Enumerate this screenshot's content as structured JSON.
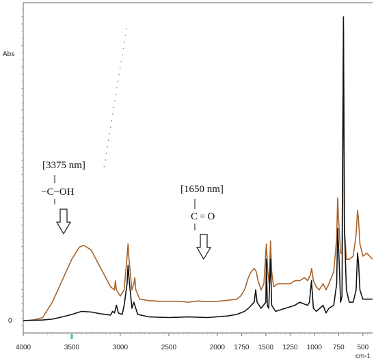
{
  "chart_data": {
    "type": "line",
    "title": "",
    "xlabel": "cm-1",
    "ylabel": "Abs",
    "x_reversed": true,
    "xlim": [
      4000,
      400
    ],
    "ylim": [
      -0.05,
      1.0
    ],
    "x_ticks": [
      4000,
      3500,
      3000,
      2500,
      2000,
      1750,
      1500,
      1250,
      1000,
      750,
      500
    ],
    "y_tick_labels": [
      {
        "value": 0,
        "label": "0"
      }
    ],
    "grid": false,
    "series": [
      {
        "color": "#a8632a",
        "points": [
          [
            4000,
            0.0
          ],
          [
            3900,
            0.002
          ],
          [
            3800,
            0.01
          ],
          [
            3700,
            0.06
          ],
          [
            3600,
            0.13
          ],
          [
            3500,
            0.2
          ],
          [
            3420,
            0.24
          ],
          [
            3375,
            0.245
          ],
          [
            3300,
            0.23
          ],
          [
            3200,
            0.17
          ],
          [
            3100,
            0.11
          ],
          [
            3060,
            0.1
          ],
          [
            3050,
            0.13
          ],
          [
            3040,
            0.1
          ],
          [
            3000,
            0.08
          ],
          [
            2960,
            0.1
          ],
          [
            2930,
            0.21
          ],
          [
            2920,
            0.25
          ],
          [
            2910,
            0.2
          ],
          [
            2880,
            0.1
          ],
          [
            2860,
            0.12
          ],
          [
            2850,
            0.14
          ],
          [
            2840,
            0.1
          ],
          [
            2800,
            0.07
          ],
          [
            2700,
            0.065
          ],
          [
            2600,
            0.063
          ],
          [
            2500,
            0.063
          ],
          [
            2400,
            0.063
          ],
          [
            2300,
            0.06
          ],
          [
            2200,
            0.064
          ],
          [
            2100,
            0.062
          ],
          [
            2000,
            0.063
          ],
          [
            1900,
            0.066
          ],
          [
            1800,
            0.07
          ],
          [
            1760,
            0.08
          ],
          [
            1720,
            0.1
          ],
          [
            1680,
            0.14
          ],
          [
            1650,
            0.16
          ],
          [
            1620,
            0.17
          ],
          [
            1600,
            0.16
          ],
          [
            1580,
            0.13
          ],
          [
            1550,
            0.1
          ],
          [
            1520,
            0.12
          ],
          [
            1495,
            0.25
          ],
          [
            1480,
            0.16
          ],
          [
            1465,
            0.12
          ],
          [
            1452,
            0.26
          ],
          [
            1440,
            0.16
          ],
          [
            1420,
            0.11
          ],
          [
            1380,
            0.12
          ],
          [
            1300,
            0.12
          ],
          [
            1250,
            0.12
          ],
          [
            1200,
            0.13
          ],
          [
            1150,
            0.13
          ],
          [
            1100,
            0.14
          ],
          [
            1070,
            0.13
          ],
          [
            1040,
            0.15
          ],
          [
            1028,
            0.17
          ],
          [
            1010,
            0.13
          ],
          [
            980,
            0.11
          ],
          [
            950,
            0.1
          ],
          [
            910,
            0.12
          ],
          [
            880,
            0.1
          ],
          [
            850,
            0.12
          ],
          [
            800,
            0.16
          ],
          [
            770,
            0.27
          ],
          [
            760,
            0.4
          ],
          [
            750,
            0.33
          ],
          [
            730,
            0.22
          ],
          [
            715,
            0.22
          ],
          [
            700,
            0.95
          ],
          [
            690,
            0.3
          ],
          [
            670,
            0.2
          ],
          [
            640,
            0.2
          ],
          [
            600,
            0.21
          ],
          [
            570,
            0.28
          ],
          [
            555,
            0.36
          ],
          [
            545,
            0.33
          ],
          [
            530,
            0.25
          ],
          [
            500,
            0.21
          ],
          [
            460,
            0.22
          ],
          [
            430,
            0.21
          ],
          [
            400,
            0.2
          ]
        ]
      },
      {
        "color": "#111111",
        "points": [
          [
            4000,
            0.0
          ],
          [
            3800,
            0.002
          ],
          [
            3700,
            0.005
          ],
          [
            3600,
            0.012
          ],
          [
            3500,
            0.02
          ],
          [
            3400,
            0.03
          ],
          [
            3300,
            0.028
          ],
          [
            3200,
            0.022
          ],
          [
            3100,
            0.018
          ],
          [
            3080,
            0.03
          ],
          [
            3060,
            0.025
          ],
          [
            3040,
            0.05
          ],
          [
            3020,
            0.025
          ],
          [
            2980,
            0.02
          ],
          [
            2960,
            0.05
          ],
          [
            2930,
            0.12
          ],
          [
            2920,
            0.18
          ],
          [
            2905,
            0.12
          ],
          [
            2880,
            0.04
          ],
          [
            2860,
            0.06
          ],
          [
            2850,
            0.05
          ],
          [
            2820,
            0.02
          ],
          [
            2700,
            0.012
          ],
          [
            2500,
            0.01
          ],
          [
            2300,
            0.012
          ],
          [
            2100,
            0.01
          ],
          [
            1900,
            0.015
          ],
          [
            1800,
            0.02
          ],
          [
            1720,
            0.03
          ],
          [
            1680,
            0.04
          ],
          [
            1650,
            0.05
          ],
          [
            1620,
            0.06
          ],
          [
            1605,
            0.1
          ],
          [
            1590,
            0.06
          ],
          [
            1550,
            0.04
          ],
          [
            1500,
            0.06
          ],
          [
            1495,
            0.2
          ],
          [
            1485,
            0.05
          ],
          [
            1470,
            0.04
          ],
          [
            1452,
            0.2
          ],
          [
            1440,
            0.05
          ],
          [
            1400,
            0.03
          ],
          [
            1300,
            0.04
          ],
          [
            1200,
            0.05
          ],
          [
            1150,
            0.06
          ],
          [
            1070,
            0.05
          ],
          [
            1050,
            0.06
          ],
          [
            1030,
            0.13
          ],
          [
            1010,
            0.04
          ],
          [
            980,
            0.03
          ],
          [
            910,
            0.05
          ],
          [
            880,
            0.025
          ],
          [
            850,
            0.04
          ],
          [
            800,
            0.05
          ],
          [
            770,
            0.12
          ],
          [
            760,
            0.3
          ],
          [
            745,
            0.2
          ],
          [
            730,
            0.06
          ],
          [
            715,
            0.08
          ],
          [
            700,
            0.99
          ],
          [
            690,
            0.3
          ],
          [
            670,
            0.1
          ],
          [
            640,
            0.06
          ],
          [
            600,
            0.06
          ],
          [
            570,
            0.1
          ],
          [
            555,
            0.22
          ],
          [
            545,
            0.19
          ],
          [
            530,
            0.1
          ],
          [
            500,
            0.07
          ],
          [
            460,
            0.07
          ],
          [
            430,
            0.07
          ],
          [
            400,
            0.07
          ]
        ]
      }
    ],
    "annotations": [
      {
        "label": "[3375 nm]",
        "group": "a",
        "x": 3375
      },
      {
        "label": "−C−OH",
        "group": "a",
        "x": 3375
      },
      {
        "label": "[1650 nm]",
        "group": "b",
        "x": 1650
      },
      {
        "label": "C = O",
        "group": "b",
        "x": 1650
      }
    ],
    "highlight": {
      "x": 3500,
      "color": "#36c7a0"
    }
  }
}
